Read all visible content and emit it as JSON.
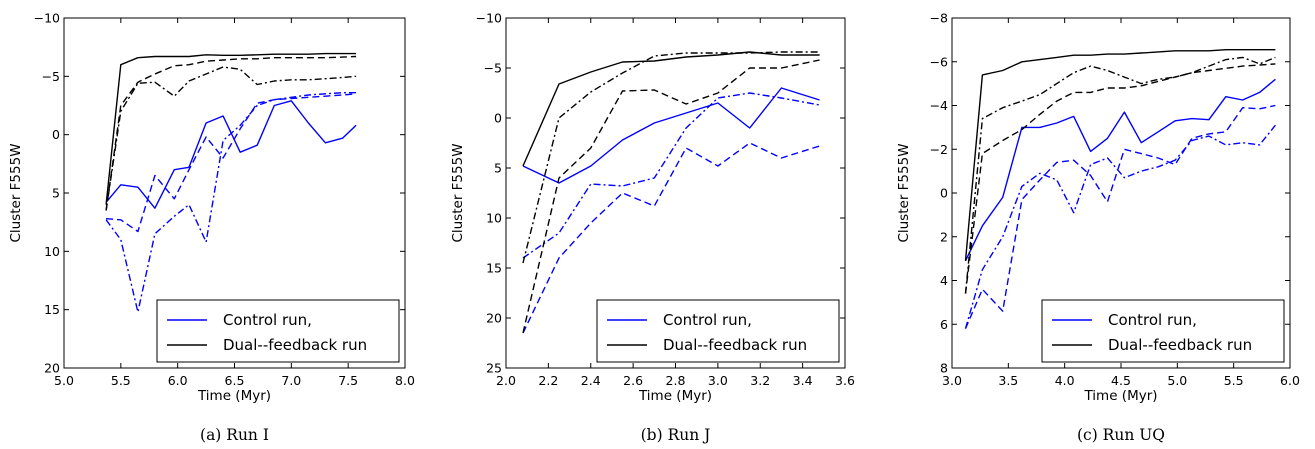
{
  "colors": {
    "control": "#0000ff",
    "dual": "#000000",
    "axes": "#000000",
    "background": "#ffffff"
  },
  "line_styles": [
    "solid",
    "dashed",
    "dashdot"
  ],
  "chart_data": [
    {
      "type": "line",
      "caption": "(a) Run I",
      "xlabel": "Time (Myr)",
      "ylabel": "Cluster F555W",
      "xlim": [
        5.0,
        8.0
      ],
      "ylim": [
        20,
        -10
      ],
      "y_inverted": true,
      "grid": false,
      "legend_position": "bottom-right",
      "x_ticks": [
        5.0,
        5.5,
        6.0,
        6.5,
        7.0,
        7.5,
        8.0
      ],
      "x_tick_labels": [
        "5.0",
        "5.5",
        "6.0",
        "6.5",
        "7.0",
        "7.5",
        "8.0"
      ],
      "y_ticks": [
        -10,
        -5,
        0,
        5,
        10,
        15,
        20
      ],
      "y_tick_labels": [
        "−10",
        "−5",
        "0",
        "5",
        "10",
        "15",
        "20"
      ],
      "legend": [
        {
          "label": "Control run,",
          "color": "#0000ff"
        },
        {
          "label": "Dual--feedback run",
          "color": "#000000"
        }
      ],
      "series": [
        {
          "run": "control",
          "style": "solid",
          "color": "#0000ff",
          "x": [
            5.37,
            5.5,
            5.65,
            5.8,
            5.97,
            6.1,
            6.25,
            6.4,
            6.55,
            6.7,
            6.85,
            7.0,
            7.15,
            7.3,
            7.45,
            7.57
          ],
          "y": [
            5.8,
            4.3,
            4.5,
            6.3,
            3.0,
            2.8,
            -1.0,
            -1.6,
            1.5,
            0.9,
            -2.5,
            -2.9,
            -1.0,
            0.7,
            0.3,
            -0.8
          ]
        },
        {
          "run": "control",
          "style": "dashed",
          "color": "#0000ff",
          "x": [
            5.37,
            5.5,
            5.65,
            5.8,
            5.97,
            6.1,
            6.25,
            6.4,
            6.55,
            6.7,
            6.85,
            7.0,
            7.15,
            7.3,
            7.45,
            7.57
          ],
          "y": [
            7.2,
            7.3,
            8.3,
            3.5,
            5.5,
            3.0,
            0.2,
            2.0,
            -0.5,
            -2.7,
            -3.0,
            -3.1,
            -3.2,
            -3.3,
            -3.4,
            -3.5
          ]
        },
        {
          "run": "control",
          "style": "dashdot",
          "color": "#0000ff",
          "x": [
            5.37,
            5.5,
            5.65,
            5.8,
            5.97,
            6.1,
            6.25,
            6.4,
            6.55,
            6.7,
            6.85,
            7.0,
            7.15,
            7.3,
            7.45,
            7.57
          ],
          "y": [
            7.3,
            9.0,
            15.2,
            8.5,
            7.0,
            6.0,
            9.2,
            0.5,
            -0.8,
            -2.5,
            -3.0,
            -3.2,
            -3.4,
            -3.5,
            -3.6,
            -3.6
          ]
        },
        {
          "run": "dual",
          "style": "solid",
          "color": "#000000",
          "x": [
            5.37,
            5.5,
            5.65,
            5.8,
            5.97,
            6.1,
            6.25,
            6.4,
            6.55,
            6.7,
            6.85,
            7.0,
            7.15,
            7.3,
            7.45,
            7.57
          ],
          "y": [
            6.0,
            -6.0,
            -6.6,
            -6.7,
            -6.7,
            -6.7,
            -6.85,
            -6.8,
            -6.8,
            -6.85,
            -6.9,
            -6.9,
            -6.9,
            -6.95,
            -6.95,
            -6.95
          ]
        },
        {
          "run": "dual",
          "style": "dashed",
          "color": "#000000",
          "x": [
            5.37,
            5.5,
            5.65,
            5.8,
            5.97,
            6.1,
            6.25,
            6.4,
            6.55,
            6.7,
            6.85,
            7.0,
            7.15,
            7.3,
            7.45,
            7.57
          ],
          "y": [
            6.5,
            -2.5,
            -4.5,
            -5.2,
            -5.9,
            -6.0,
            -6.3,
            -6.4,
            -6.5,
            -6.5,
            -6.6,
            -6.6,
            -6.6,
            -6.6,
            -6.65,
            -6.7
          ]
        },
        {
          "run": "dual",
          "style": "dashdot",
          "color": "#000000",
          "x": [
            5.37,
            5.5,
            5.65,
            5.8,
            5.97,
            6.1,
            6.25,
            6.4,
            6.55,
            6.7,
            6.85,
            7.0,
            7.15,
            7.3,
            7.45,
            7.57
          ],
          "y": [
            6.5,
            -2.0,
            -4.4,
            -4.5,
            -3.3,
            -4.6,
            -5.2,
            -5.8,
            -5.6,
            -4.3,
            -4.6,
            -4.7,
            -4.7,
            -4.8,
            -4.9,
            -5.0
          ]
        }
      ]
    },
    {
      "type": "line",
      "caption": "(b) Run J",
      "xlabel": "Time (Myr)",
      "ylabel": "Cluster F555W",
      "xlim": [
        2.0,
        3.6
      ],
      "ylim": [
        25,
        -10
      ],
      "y_inverted": true,
      "grid": false,
      "legend_position": "bottom-right",
      "x_ticks": [
        2.0,
        2.2,
        2.4,
        2.6,
        2.8,
        3.0,
        3.2,
        3.4,
        3.6
      ],
      "x_tick_labels": [
        "2.0",
        "2.2",
        "2.4",
        "2.6",
        "2.8",
        "3.0",
        "3.2",
        "3.4",
        "3.6"
      ],
      "y_ticks": [
        -10,
        -5,
        0,
        5,
        10,
        15,
        20,
        25
      ],
      "y_tick_labels": [
        "−10",
        "−5",
        "0",
        "5",
        "10",
        "15",
        "20",
        "25"
      ],
      "legend": [
        {
          "label": "Control run,",
          "color": "#0000ff"
        },
        {
          "label": "Dual--feedback run",
          "color": "#000000"
        }
      ],
      "series": [
        {
          "run": "control",
          "style": "solid",
          "color": "#0000ff",
          "x": [
            2.08,
            2.25,
            2.4,
            2.55,
            2.7,
            2.85,
            3.0,
            3.15,
            3.3,
            3.48
          ],
          "y": [
            4.8,
            6.5,
            4.8,
            2.2,
            0.5,
            -0.5,
            -1.5,
            1.0,
            -3.0,
            -1.8
          ]
        },
        {
          "run": "control",
          "style": "dashed",
          "color": "#0000ff",
          "x": [
            2.08,
            2.25,
            2.4,
            2.55,
            2.7,
            2.85,
            3.0,
            3.15,
            3.3,
            3.48
          ],
          "y": [
            21.5,
            14.0,
            10.5,
            7.5,
            8.8,
            3.0,
            4.8,
            2.5,
            4.0,
            2.8
          ]
        },
        {
          "run": "control",
          "style": "dashdot",
          "color": "#0000ff",
          "x": [
            2.08,
            2.25,
            2.4,
            2.55,
            2.7,
            2.85,
            3.0,
            3.15,
            3.3,
            3.48
          ],
          "y": [
            14.0,
            11.5,
            6.6,
            6.8,
            6.0,
            1.0,
            -2.0,
            -2.5,
            -2.0,
            -1.3
          ]
        },
        {
          "run": "dual",
          "style": "solid",
          "color": "#000000",
          "x": [
            2.08,
            2.25,
            2.4,
            2.55,
            2.7,
            2.85,
            3.0,
            3.15,
            3.3,
            3.48
          ],
          "y": [
            4.8,
            -3.4,
            -4.6,
            -5.6,
            -5.7,
            -6.1,
            -6.3,
            -6.6,
            -6.3,
            -6.3
          ]
        },
        {
          "run": "dual",
          "style": "dashed",
          "color": "#000000",
          "x": [
            2.08,
            2.25,
            2.4,
            2.55,
            2.7,
            2.85,
            3.0,
            3.15,
            3.3,
            3.48
          ],
          "y": [
            21.5,
            6.0,
            3.0,
            -2.7,
            -2.8,
            -1.4,
            -2.5,
            -5.0,
            -5.0,
            -5.8
          ]
        },
        {
          "run": "dual",
          "style": "dashdot",
          "color": "#000000",
          "x": [
            2.08,
            2.25,
            2.4,
            2.55,
            2.7,
            2.85,
            3.0,
            3.15,
            3.3,
            3.48
          ],
          "y": [
            14.5,
            0.0,
            -2.6,
            -4.5,
            -6.2,
            -6.5,
            -6.5,
            -6.5,
            -6.6,
            -6.6
          ]
        }
      ]
    },
    {
      "type": "line",
      "caption": "(c) Run UQ",
      "xlabel": "Time (Myr)",
      "ylabel": "Cluster F555W",
      "xlim": [
        3.0,
        6.0
      ],
      "ylim": [
        8,
        -8
      ],
      "y_inverted": true,
      "grid": false,
      "legend_position": "bottom-right",
      "x_ticks": [
        3.0,
        3.5,
        4.0,
        4.5,
        5.0,
        5.5,
        6.0
      ],
      "x_tick_labels": [
        "3.0",
        "3.5",
        "4.0",
        "4.5",
        "5.0",
        "5.5",
        "6.0"
      ],
      "y_ticks": [
        -8,
        -6,
        -4,
        -2,
        0,
        2,
        4,
        6,
        8
      ],
      "y_tick_labels": [
        "−8",
        "−6",
        "−4",
        "−2",
        "0",
        "2",
        "4",
        "6",
        "8"
      ],
      "legend": [
        {
          "label": "Control run,",
          "color": "#0000ff"
        },
        {
          "label": "Dual--feedback run",
          "color": "#000000"
        }
      ],
      "series": [
        {
          "run": "control",
          "style": "solid",
          "color": "#0000ff",
          "x": [
            3.12,
            3.27,
            3.45,
            3.62,
            3.78,
            3.93,
            4.08,
            4.23,
            4.38,
            4.53,
            4.68,
            4.83,
            4.98,
            5.13,
            5.28,
            5.43,
            5.58,
            5.73,
            5.87
          ],
          "y": [
            3.1,
            1.5,
            0.2,
            -3.0,
            -3.0,
            -3.2,
            -3.5,
            -1.9,
            -2.5,
            -3.7,
            -2.3,
            -2.8,
            -3.3,
            -3.4,
            -3.35,
            -4.4,
            -4.25,
            -4.6,
            -5.2
          ]
        },
        {
          "run": "control",
          "style": "dashed",
          "color": "#0000ff",
          "x": [
            3.12,
            3.27,
            3.45,
            3.62,
            3.78,
            3.93,
            4.08,
            4.23,
            4.38,
            4.53,
            4.68,
            4.83,
            4.98,
            5.13,
            5.28,
            5.43,
            5.58,
            5.73,
            5.87
          ],
          "y": [
            6.2,
            4.4,
            5.4,
            0.3,
            -0.6,
            -1.4,
            -1.5,
            -0.8,
            0.4,
            -2.0,
            -1.8,
            -1.6,
            -1.3,
            -2.5,
            -2.7,
            -2.8,
            -3.9,
            -3.85,
            -4.0
          ]
        },
        {
          "run": "control",
          "style": "dashdot",
          "color": "#0000ff",
          "x": [
            3.12,
            3.27,
            3.45,
            3.62,
            3.78,
            3.93,
            4.08,
            4.23,
            4.38,
            4.53,
            4.68,
            4.83,
            4.98,
            5.13,
            5.28,
            5.43,
            5.58,
            5.73,
            5.87
          ],
          "y": [
            6.2,
            3.5,
            2.0,
            -0.3,
            -0.9,
            -0.6,
            0.9,
            -1.3,
            -1.6,
            -0.7,
            -1.0,
            -1.2,
            -1.5,
            -2.4,
            -2.6,
            -2.2,
            -2.3,
            -2.2,
            -3.1
          ]
        },
        {
          "run": "dual",
          "style": "solid",
          "color": "#000000",
          "x": [
            3.12,
            3.27,
            3.45,
            3.62,
            3.78,
            3.93,
            4.08,
            4.23,
            4.38,
            4.53,
            4.68,
            4.83,
            4.98,
            5.13,
            5.28,
            5.43,
            5.58,
            5.73,
            5.87
          ],
          "y": [
            3.1,
            -5.4,
            -5.6,
            -6.0,
            -6.1,
            -6.2,
            -6.3,
            -6.3,
            -6.35,
            -6.35,
            -6.4,
            -6.45,
            -6.5,
            -6.5,
            -6.5,
            -6.55,
            -6.55,
            -6.55,
            -6.55
          ]
        },
        {
          "run": "dual",
          "style": "dashed",
          "color": "#000000",
          "x": [
            3.12,
            3.27,
            3.45,
            3.62,
            3.78,
            3.93,
            4.08,
            4.23,
            4.38,
            4.53,
            4.68,
            4.83,
            4.98,
            5.13,
            5.28,
            5.43,
            5.58,
            5.73,
            5.87
          ],
          "y": [
            4.6,
            -1.8,
            -2.4,
            -2.9,
            -3.6,
            -4.2,
            -4.6,
            -4.6,
            -4.8,
            -4.8,
            -4.9,
            -5.1,
            -5.3,
            -5.5,
            -5.6,
            -5.7,
            -5.8,
            -5.85,
            -5.9
          ]
        },
        {
          "run": "dual",
          "style": "dashdot",
          "color": "#000000",
          "x": [
            3.12,
            3.27,
            3.45,
            3.62,
            3.78,
            3.93,
            4.08,
            4.23,
            4.38,
            4.53,
            4.68,
            4.83,
            4.98,
            5.13,
            5.28,
            5.43,
            5.58,
            5.73,
            5.87
          ],
          "y": [
            4.6,
            -3.4,
            -3.9,
            -4.2,
            -4.5,
            -5.0,
            -5.5,
            -5.8,
            -5.6,
            -5.3,
            -5.0,
            -5.2,
            -5.3,
            -5.5,
            -5.8,
            -6.1,
            -6.2,
            -5.9,
            -6.2
          ]
        }
      ]
    }
  ]
}
